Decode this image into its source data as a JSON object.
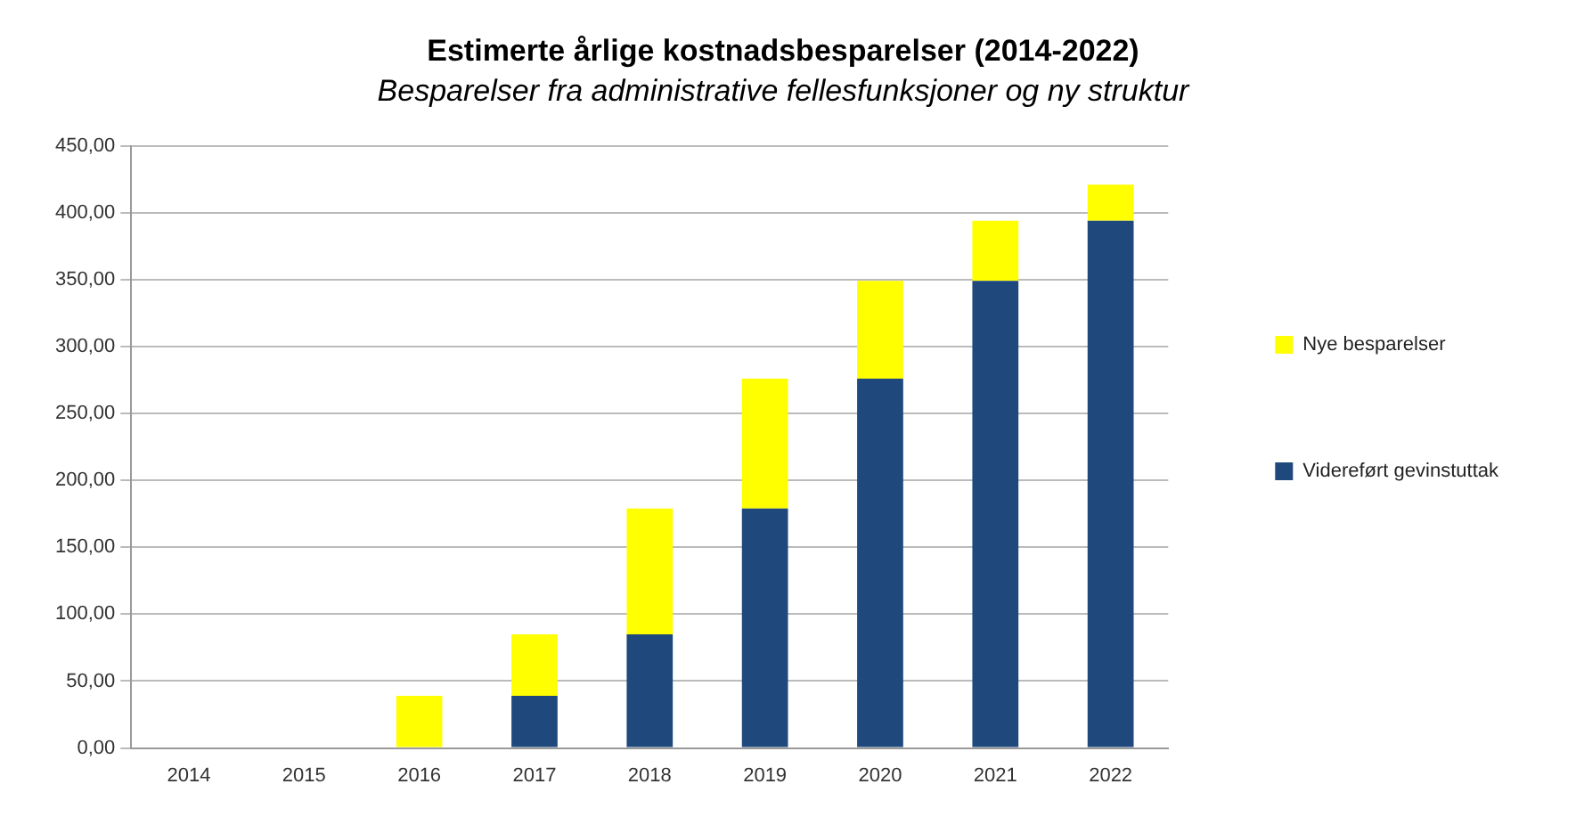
{
  "chart_data": {
    "type": "bar",
    "title": "Estimerte årlige kostnadsbesparelser (2014-2022)",
    "subtitle": "Besparelser fra administrative fellesfunksjoner og ny struktur",
    "categories": [
      "2014",
      "2015",
      "2016",
      "2017",
      "2018",
      "2019",
      "2020",
      "2021",
      "2022"
    ],
    "series": [
      {
        "name": "Videreført gevinstuttak",
        "color": "#1f497d",
        "values": [
          0,
          0,
          0,
          39,
          85,
          179,
          276,
          349,
          394
        ]
      },
      {
        "name": "Nye besparelser",
        "color": "#ffff00",
        "values": [
          0,
          0,
          39,
          46,
          94,
          97,
          73,
          45,
          27
        ]
      }
    ],
    "stacked": true,
    "ylim": [
      0,
      450
    ],
    "yticks": [
      {
        "value": 0,
        "label": "0,00"
      },
      {
        "value": 50,
        "label": "50,00"
      },
      {
        "value": 100,
        "label": "100,00"
      },
      {
        "value": 150,
        "label": "150,00"
      },
      {
        "value": 200,
        "label": "200,00"
      },
      {
        "value": 250,
        "label": "250,00"
      },
      {
        "value": 300,
        "label": "300,00"
      },
      {
        "value": 350,
        "label": "350,00"
      },
      {
        "value": 400,
        "label": "400,00"
      },
      {
        "value": 450,
        "label": "450,00"
      }
    ],
    "grid": "y",
    "legend": "right"
  }
}
